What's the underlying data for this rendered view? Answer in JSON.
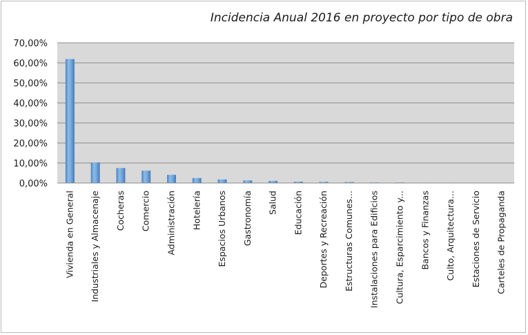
{
  "chart_data": {
    "type": "bar",
    "title": "Incidencia Anual 2016 en proyecto por tipo de obra",
    "xlabel": "",
    "ylabel": "",
    "ylim": [
      0,
      70
    ],
    "yticks": [
      "0,00%",
      "10,00%",
      "20,00%",
      "30,00%",
      "40,00%",
      "50,00%",
      "60,00%",
      "70,00%"
    ],
    "grid": true,
    "legend": "none",
    "categories": [
      "Vivienda en General",
      "Industriales y Almacenaje",
      "Cocheras",
      "Comercio",
      "Administración",
      "Hotelería",
      "Espacios Urbanos",
      "Gastronomía",
      "Salud",
      "Educación",
      "Deportes y Recreación",
      "Estructuras Comunes...",
      "Instalaciones para Edificios",
      "Cultura, Esparcimiento y...",
      "Bancos y Finanzas",
      "Culto, Arquitectura...",
      "Estaciones de Servicio",
      "Carteles de Propaganda"
    ],
    "values": [
      61.9,
      10.3,
      7.5,
      6.2,
      4.1,
      2.5,
      1.8,
      1.3,
      1.1,
      0.7,
      0.6,
      0.5,
      0.3,
      0.3,
      0.2,
      0.2,
      0.1,
      0.1
    ],
    "bar_color": "#5b9bd5",
    "plot_background": "#d9d9d9",
    "grid_color": "#8c8c8c"
  }
}
